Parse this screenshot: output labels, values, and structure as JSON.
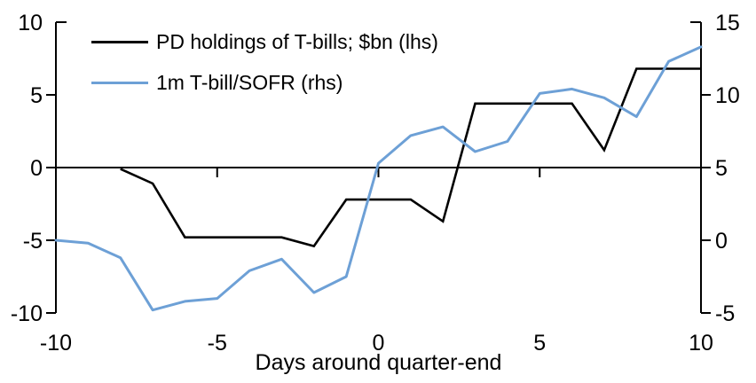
{
  "chart_data": {
    "type": "line",
    "title": "",
    "xlabel": "Days around quarter-end",
    "grid": false,
    "legend_position": "top-left",
    "background": "#ffffff",
    "axis_color": "#000000",
    "x": [
      -10,
      -9,
      -8,
      -7,
      -6,
      -5,
      -4,
      -3,
      -2,
      -1,
      0,
      1,
      2,
      3,
      4,
      5,
      6,
      7,
      8,
      9,
      10
    ],
    "x_axis": {
      "min": -10,
      "max": 10,
      "ticks": [
        -10,
        -5,
        0,
        5,
        10
      ]
    },
    "left_axis": {
      "min": -10,
      "max": 10,
      "ticks": [
        10,
        5,
        0,
        -5,
        -10
      ]
    },
    "right_axis": {
      "min": -5,
      "max": 15,
      "ticks": [
        15,
        10,
        5,
        0,
        -5
      ]
    },
    "series": [
      {
        "name": "PD holdings of T-bills; $bn (lhs)",
        "axis": "left",
        "color": "#000000",
        "values": [
          null,
          null,
          -0.1,
          -1.1,
          -4.8,
          -4.8,
          -4.8,
          -4.8,
          -5.4,
          -2.2,
          -2.2,
          -2.2,
          -3.7,
          4.4,
          4.4,
          4.4,
          4.4,
          1.2,
          6.8,
          6.8,
          6.8
        ]
      },
      {
        "name": "1m T-bill/SOFR (rhs)",
        "axis": "right",
        "color": "#6DA0D6",
        "values": [
          0.0,
          -0.2,
          -1.2,
          -4.8,
          -4.2,
          -4.0,
          -2.1,
          -1.3,
          -3.6,
          -2.5,
          5.3,
          7.2,
          7.8,
          6.1,
          6.8,
          10.1,
          10.4,
          9.8,
          8.5,
          12.3,
          13.3
        ]
      }
    ]
  }
}
